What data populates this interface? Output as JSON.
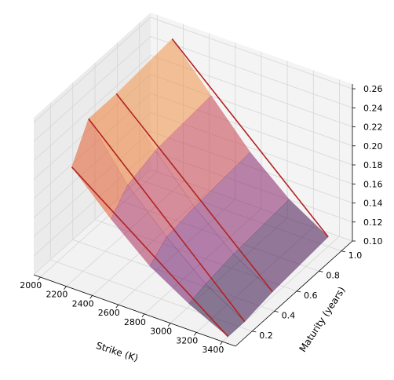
{
  "chart_data": {
    "type": "surface3d",
    "title": "",
    "xlabel": "Strike (K)",
    "ylabel": "Maturity (years)",
    "zlabel": "",
    "x_ticks": [
      "2000",
      "2200",
      "2400",
      "2600",
      "2800",
      "3000",
      "3200",
      "3400"
    ],
    "y_ticks": [
      "0.2",
      "0.4",
      "0.6",
      "0.8",
      "1.0"
    ],
    "z_ticks": [
      "0.10",
      "0.12",
      "0.14",
      "0.16",
      "0.18",
      "0.20",
      "0.22",
      "0.24",
      "0.26"
    ],
    "xlim": [
      1950,
      3500
    ],
    "ylim": [
      0.05,
      1.1
    ],
    "zlim": [
      0.1,
      0.265
    ],
    "grid": true,
    "colormap": "inferno",
    "slice_color": "#b22222",
    "surface": {
      "strikes": [
        2200,
        2500,
        2800,
        3100,
        3400
      ],
      "maturities": [
        0.1,
        0.25,
        0.5,
        1.0
      ],
      "vols": [
        [
          0.22,
          0.255,
          0.255,
          0.26
        ],
        [
          0.18,
          0.2,
          0.21,
          0.215
        ],
        [
          0.145,
          0.16,
          0.165,
          0.17
        ],
        [
          0.12,
          0.125,
          0.13,
          0.135
        ],
        [
          0.1,
          0.1,
          0.105,
          0.11
        ]
      ]
    },
    "slices": [
      {
        "maturity": 0.1,
        "strikes": [
          2200,
          3400
        ],
        "vols": [
          0.22,
          0.1
        ]
      },
      {
        "maturity": 0.25,
        "strikes": [
          2200,
          3400
        ],
        "vols": [
          0.255,
          0.1
        ]
      },
      {
        "maturity": 0.5,
        "strikes": [
          2200,
          3400
        ],
        "vols": [
          0.255,
          0.105
        ]
      },
      {
        "maturity": 1.0,
        "strikes": [
          2200,
          3400
        ],
        "vols": [
          0.26,
          0.11
        ]
      }
    ]
  }
}
